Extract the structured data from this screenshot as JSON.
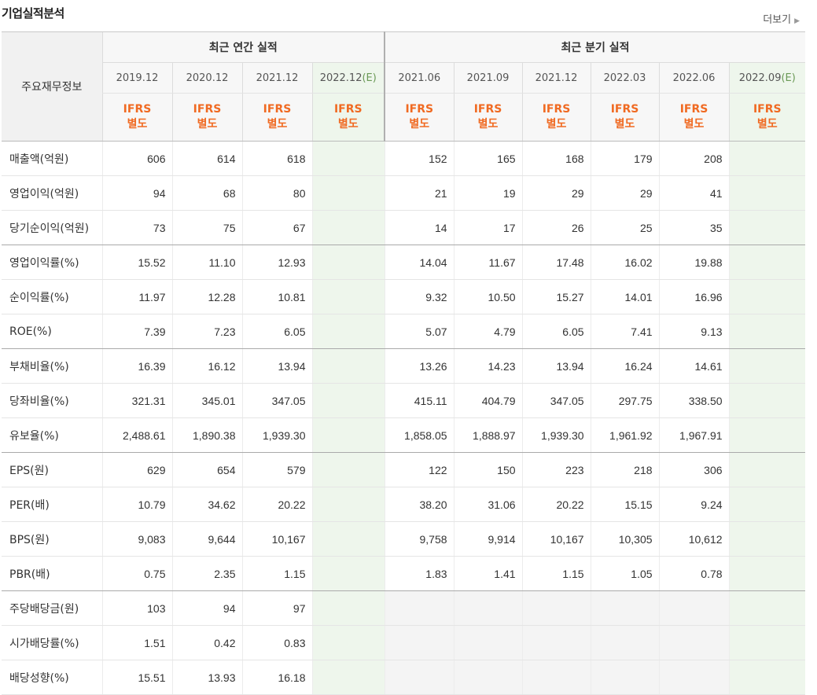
{
  "header": {
    "title": "기업실적분석",
    "more_label": "더보기"
  },
  "table": {
    "main_header": "주요재무정보",
    "annual_group": "최근 연간 실적",
    "quarter_group": "최근 분기 실적",
    "annual_periods": [
      "2019.12",
      "2020.12",
      "2021.12",
      "2022.12"
    ],
    "quarter_periods": [
      "2021.06",
      "2021.09",
      "2021.12",
      "2022.03",
      "2022.06",
      "2022.09"
    ],
    "estimate_marker": "(E)",
    "ifrs_line1": "IFRS",
    "ifrs_line2": "별도",
    "rows": [
      {
        "label": "매출액(억원)",
        "annual": [
          "606",
          "614",
          "618",
          ""
        ],
        "quarter": [
          "152",
          "165",
          "168",
          "179",
          "208",
          ""
        ]
      },
      {
        "label": "영업이익(억원)",
        "annual": [
          "94",
          "68",
          "80",
          ""
        ],
        "quarter": [
          "21",
          "19",
          "29",
          "29",
          "41",
          ""
        ]
      },
      {
        "label": "당기순이익(억원)",
        "annual": [
          "73",
          "75",
          "67",
          ""
        ],
        "quarter": [
          "14",
          "17",
          "26",
          "25",
          "35",
          ""
        ]
      },
      {
        "label": "영업이익률(%)",
        "annual": [
          "15.52",
          "11.10",
          "12.93",
          ""
        ],
        "quarter": [
          "14.04",
          "11.67",
          "17.48",
          "16.02",
          "19.88",
          ""
        ]
      },
      {
        "label": "순이익률(%)",
        "annual": [
          "11.97",
          "12.28",
          "10.81",
          ""
        ],
        "quarter": [
          "9.32",
          "10.50",
          "15.27",
          "14.01",
          "16.96",
          ""
        ]
      },
      {
        "label": "ROE(%)",
        "annual": [
          "7.39",
          "7.23",
          "6.05",
          ""
        ],
        "quarter": [
          "5.07",
          "4.79",
          "6.05",
          "7.41",
          "9.13",
          ""
        ]
      },
      {
        "label": "부채비율(%)",
        "annual": [
          "16.39",
          "16.12",
          "13.94",
          ""
        ],
        "quarter": [
          "13.26",
          "14.23",
          "13.94",
          "16.24",
          "14.61",
          ""
        ]
      },
      {
        "label": "당좌비율(%)",
        "annual": [
          "321.31",
          "345.01",
          "347.05",
          ""
        ],
        "quarter": [
          "415.11",
          "404.79",
          "347.05",
          "297.75",
          "338.50",
          ""
        ]
      },
      {
        "label": "유보율(%)",
        "annual": [
          "2,488.61",
          "1,890.38",
          "1,939.30",
          ""
        ],
        "quarter": [
          "1,858.05",
          "1,888.97",
          "1,939.30",
          "1,961.92",
          "1,967.91",
          ""
        ]
      },
      {
        "label": "EPS(원)",
        "annual": [
          "629",
          "654",
          "579",
          ""
        ],
        "quarter": [
          "122",
          "150",
          "223",
          "218",
          "306",
          ""
        ]
      },
      {
        "label": "PER(배)",
        "annual": [
          "10.79",
          "34.62",
          "20.22",
          ""
        ],
        "quarter": [
          "38.20",
          "31.06",
          "20.22",
          "15.15",
          "9.24",
          ""
        ]
      },
      {
        "label": "BPS(원)",
        "annual": [
          "9,083",
          "9,644",
          "10,167",
          ""
        ],
        "quarter": [
          "9,758",
          "9,914",
          "10,167",
          "10,305",
          "10,612",
          ""
        ]
      },
      {
        "label": "PBR(배)",
        "annual": [
          "0.75",
          "2.35",
          "1.15",
          ""
        ],
        "quarter": [
          "1.83",
          "1.41",
          "1.15",
          "1.05",
          "0.78",
          ""
        ]
      },
      {
        "label": "주당배당금(원)",
        "annual": [
          "103",
          "94",
          "97",
          ""
        ],
        "quarter": [
          "",
          "",
          "",
          "",
          "",
          ""
        ]
      },
      {
        "label": "시가배당률(%)",
        "annual": [
          "1.51",
          "0.42",
          "0.83",
          ""
        ],
        "quarter": [
          "",
          "",
          "",
          "",
          "",
          ""
        ]
      },
      {
        "label": "배당성향(%)",
        "annual": [
          "15.51",
          "13.93",
          "16.18",
          ""
        ],
        "quarter": [
          "",
          "",
          "",
          "",
          "",
          ""
        ]
      }
    ]
  }
}
